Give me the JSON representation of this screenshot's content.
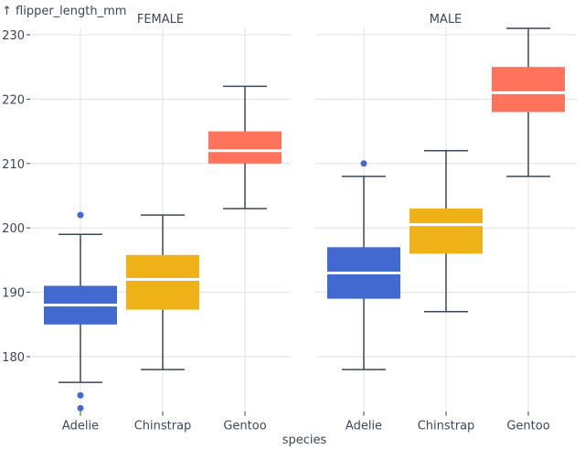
{
  "chart_data": {
    "type": "box",
    "ylabel": "↑ flipper_length_mm",
    "xlabel": "species",
    "ylim": [
      171.8,
      231.2
    ],
    "yticks": [
      180,
      190,
      200,
      210,
      220,
      230
    ],
    "grid": true,
    "categories": [
      "Adelie",
      "Chinstrap",
      "Gentoo"
    ],
    "colors": {
      "Adelie": "#4269d0",
      "Chinstrap": "#efb118",
      "Gentoo": "#ff725c"
    },
    "facets": [
      {
        "title": "FEMALE",
        "boxes": [
          {
            "category": "Adelie",
            "whisker_low": 176,
            "q1": 185,
            "median": 188,
            "q3": 191,
            "whisker_high": 199,
            "outliers": [
              202,
              174,
              172
            ]
          },
          {
            "category": "Chinstrap",
            "whisker_low": 178,
            "q1": 187.3,
            "median": 192,
            "q3": 195.8,
            "whisker_high": 202,
            "outliers": []
          },
          {
            "category": "Gentoo",
            "whisker_low": 203,
            "q1": 210,
            "median": 212,
            "q3": 215,
            "whisker_high": 222,
            "outliers": []
          }
        ]
      },
      {
        "title": "MALE",
        "boxes": [
          {
            "category": "Adelie",
            "whisker_low": 178,
            "q1": 189,
            "median": 193,
            "q3": 197,
            "whisker_high": 208,
            "outliers": [
              210
            ]
          },
          {
            "category": "Chinstrap",
            "whisker_low": 187,
            "q1": 196,
            "median": 200.5,
            "q3": 203,
            "whisker_high": 212,
            "outliers": []
          },
          {
            "category": "Gentoo",
            "whisker_low": 208,
            "q1": 218,
            "median": 221,
            "q3": 225,
            "whisker_high": 231,
            "outliers": []
          }
        ]
      }
    ]
  }
}
